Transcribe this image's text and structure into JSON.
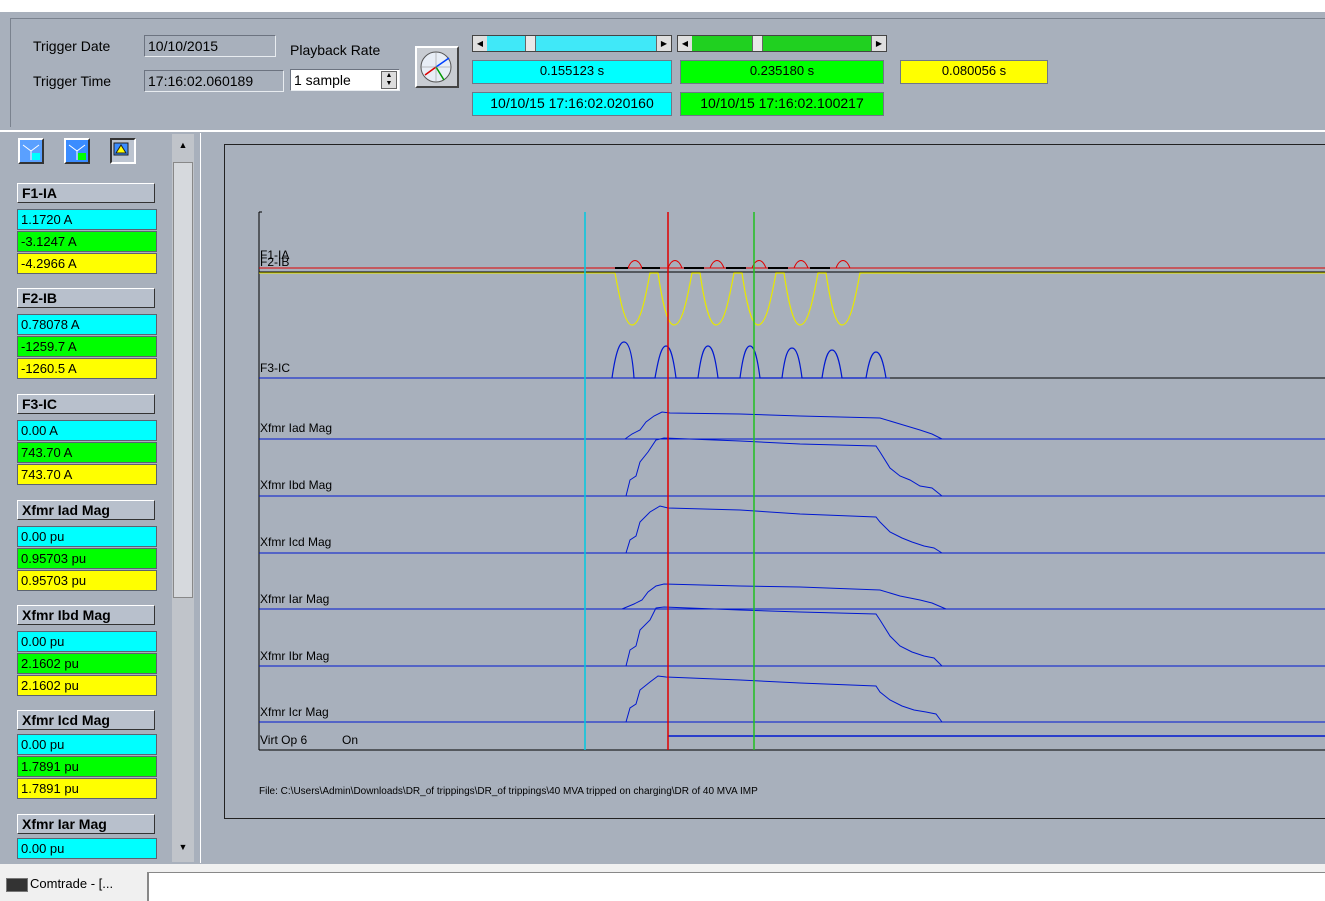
{
  "header": {
    "trigger_date_label": "Trigger Date",
    "trigger_date_value": "10/10/2015",
    "trigger_time_label": "Trigger Time",
    "trigger_time_value": "17:16:02.060189",
    "playback_rate_label": "Playback Rate",
    "playback_rate_value": "1 sample",
    "cursor1_time": "0.155123 s",
    "cursor1_timestamp": "10/10/15 17:16:02.020160",
    "cursor2_time": "0.235180 s",
    "cursor2_timestamp": "10/10/15 17:16:02.100217",
    "delta_time": "0.080056 s"
  },
  "channels": [
    {
      "name": "F1-IA",
      "values": [
        "1.1720 A",
        "-3.1247 A",
        "-4.2966 A"
      ]
    },
    {
      "name": "F2-IB",
      "values": [
        "0.78078 A",
        "-1259.7 A",
        "-1260.5 A"
      ]
    },
    {
      "name": "F3-IC",
      "values": [
        "0.00 A",
        "743.70 A",
        "743.70 A"
      ]
    },
    {
      "name": "Xfmr Iad Mag",
      "values": [
        "0.00 pu",
        "0.95703 pu",
        "0.95703 pu"
      ]
    },
    {
      "name": "Xfmr Ibd Mag",
      "values": [
        "0.00 pu",
        "2.1602 pu",
        "2.1602 pu"
      ]
    },
    {
      "name": "Xfmr Icd Mag",
      "values": [
        "0.00 pu",
        "1.7891 pu",
        "1.7891 pu"
      ]
    },
    {
      "name": "Xfmr Iar Mag",
      "values": [
        "0.00 pu"
      ]
    }
  ],
  "plot": {
    "labels": {
      "f1_ia": "F1-IA",
      "f2_ib": "F2-IB",
      "f3_ic": "F3-IC",
      "iad": "Xfmr Iad Mag",
      "ibd": "Xfmr Ibd Mag",
      "icd": "Xfmr Icd Mag",
      "iar": "Xfmr Iar Mag",
      "ibr": "Xfmr Ibr Mag",
      "icr": "Xfmr Icr Mag",
      "virt": "Virt Op 6",
      "virt_state": "On"
    },
    "file_path": "File: C:\\Users\\Admin\\Downloads\\DR_of trippings\\DR_of trippings\\40 MVA tripped on charging\\DR of 40 MVA IMP",
    "colors": {
      "cursor1": "#00c8e0",
      "cursor2": "#20c020",
      "trigger": "#e00000",
      "trace": "#0018d0"
    }
  },
  "taskbar": {
    "item": "Comtrade - [..."
  }
}
